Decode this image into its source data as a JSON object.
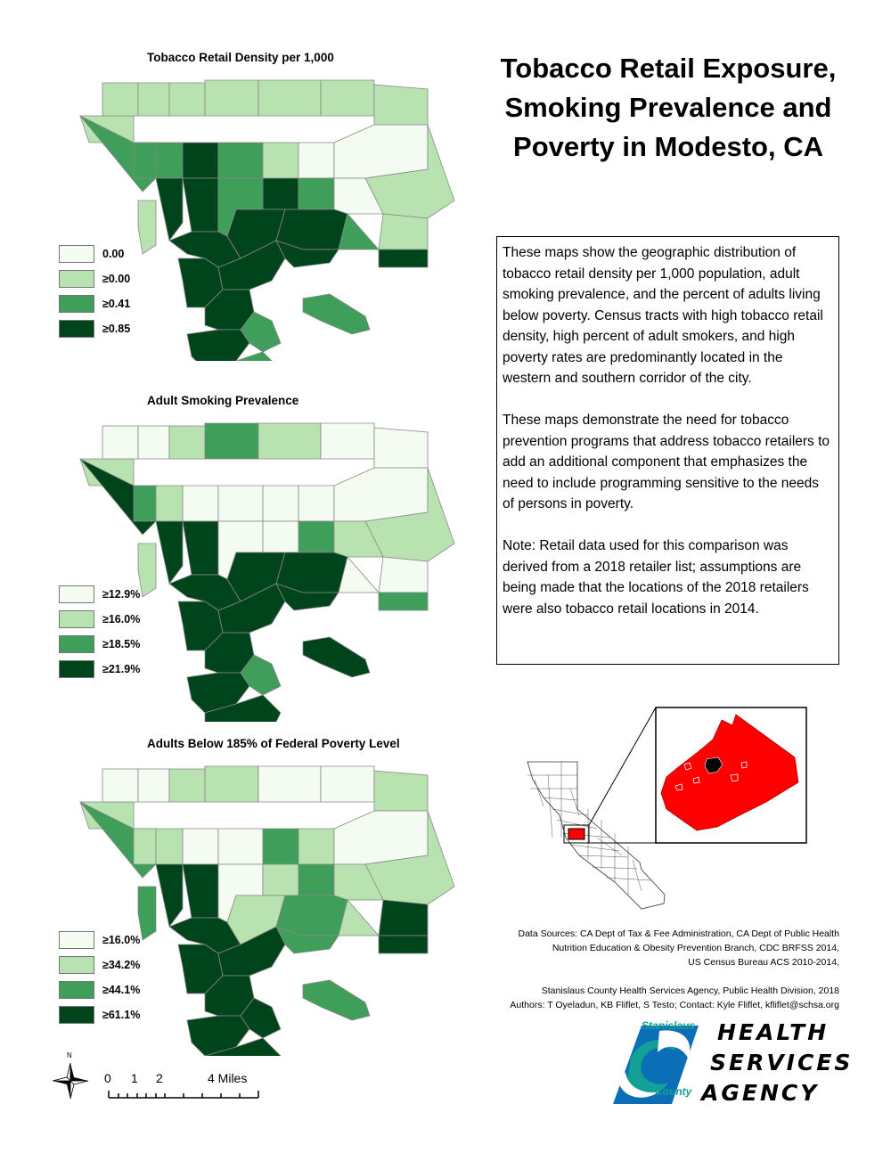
{
  "colors": {
    "class1": "#f4fbf1",
    "class2": "#b8e3b1",
    "class3": "#3f9e5a",
    "class4": "#00441b",
    "boundary": "#888888",
    "highlight": "#ff0000"
  },
  "main_title": {
    "line1": "Tobacco Retail Exposure,",
    "line2": "Smoking Prevalence and",
    "line3": "Poverty in Modesto, CA"
  },
  "description": {
    "p1": "These maps show the geographic distribution of tobacco retail density per 1,000 population, adult smoking prevalence, and the percent of adults living below poverty.  Census tracts with high tobacco retail density, high percent of adult smokers, and high poverty rates are predominantly located in the western and southern corridor of the city.",
    "p2": "These maps demonstrate the need for tobacco prevention programs that address tobacco retailers to add an additional component that emphasizes the need to include programming sensitive to the needs of persons in poverty.",
    "p3": "Note:  Retail data used for this comparison was derived from a 2018 retailer list; assumptions are being made that the locations of the 2018 retailers were also tobacco retail locations in 2014."
  },
  "maps": [
    {
      "title": "Tobacco Retail Density per 1,000",
      "legend": [
        "0.00",
        "≥0.00",
        "≥0.41",
        "≥0.85"
      ]
    },
    {
      "title": "Adult Smoking Prevalence",
      "legend": [
        "≥12.9%",
        "≥16.0%",
        "≥18.5%",
        "≥21.9%"
      ]
    },
    {
      "title": "Adults Below 185% of Federal Poverty Level",
      "legend": [
        "≥16.0%",
        "≥34.2%",
        "≥44.1%",
        "≥61.1%"
      ]
    }
  ],
  "sources": {
    "line1": "Data Sources: CA Dept of Tax & Fee Administration, CA Dept of Public Health",
    "line2": "Nutrition Education & Obesity Prevention Branch, CDC BRFSS 2014,",
    "line3": "US Census Bureau ACS 2010-2014,",
    "line4": "Stanislaus County Health Services Agency, Public Health Division, 2018",
    "line5": "Authors: T Oyeladun, KB Fliflet, S Testo;  Contact: Kyle Fliflet, kfliflet@schsa.org"
  },
  "scale": {
    "north": "N",
    "t0": "0",
    "t1": "1",
    "t2": "2",
    "t4": "4 Miles"
  },
  "logo": {
    "stanislaus": "Stanislaus",
    "county": "County",
    "word1": "HEALTH",
    "word2": "SERVICES",
    "word3": "AGENCY"
  }
}
